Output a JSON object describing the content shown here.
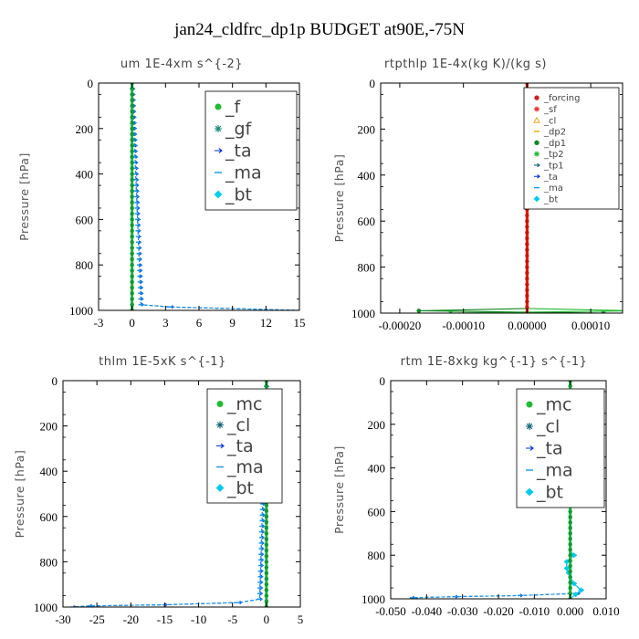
{
  "figure": {
    "title": "jan24_cldfrc_dp1p  BUDGET at90E,-75N"
  },
  "chart_data": [
    {
      "type": "line",
      "title": "um  1E-4xm s^{-2}",
      "xlabel": "",
      "ylabel": "Pressure [hPa]",
      "xlim": [
        -3,
        15
      ],
      "ylim": [
        1000,
        0
      ],
      "xticks": [
        -3,
        0,
        3,
        6,
        9,
        12,
        15
      ],
      "xtick_labels": [
        "-3",
        "0",
        "3",
        "6",
        "9",
        "12",
        "15"
      ],
      "yticks": [
        0,
        200,
        400,
        600,
        800,
        1000
      ],
      "ytick_labels": [
        "0",
        "200",
        "400",
        "600",
        "800",
        "1000"
      ],
      "legend_position": "top-right",
      "legend_size": "large",
      "series": [
        {
          "name": "_f",
          "color": "#22bb33",
          "marker": "circle",
          "pressure": [
            0,
            1000
          ],
          "values": [
            0,
            0
          ]
        },
        {
          "name": "_gf",
          "color": "#118877",
          "marker": "star",
          "pressure": [
            0,
            1000
          ],
          "values": [
            0,
            0
          ]
        },
        {
          "name": "_ta",
          "color": "#0033dd",
          "marker": "arrow",
          "pressure": [
            0,
            975,
            985,
            1000
          ],
          "values": [
            0,
            0.8,
            3.5,
            15
          ]
        },
        {
          "name": "_ma",
          "color": "#1199ee",
          "marker": "dash",
          "pressure": [
            0,
            975,
            985,
            1000
          ],
          "values": [
            0,
            0.8,
            3.3,
            15
          ]
        },
        {
          "name": "_bt",
          "color": "#00ccee",
          "marker": "diamond",
          "pressure": [
            0,
            1000
          ],
          "values": [
            0,
            0
          ]
        }
      ]
    },
    {
      "type": "line",
      "title": "rtpthlp  1E-4x(kg K)/(kg s)",
      "xlabel": "",
      "ylabel": "Pressure [hPa]",
      "xlim": [
        -0.00023,
        0.00015
      ],
      "ylim": [
        1000,
        0
      ],
      "xticks": [
        -0.0002,
        -0.0001,
        0,
        0.0001
      ],
      "xtick_labels": [
        "-0.00020",
        "-0.00010",
        "0.00000",
        "0.00010"
      ],
      "yticks": [
        0,
        200,
        400,
        600,
        800,
        1000
      ],
      "ytick_labels": [
        "0",
        "200",
        "400",
        "600",
        "800",
        "1000"
      ],
      "legend_position": "top-right",
      "legend_size": "small",
      "series": [
        {
          "name": "_forcing",
          "color": "#cc2222",
          "marker": "circle",
          "pressure": [
            0,
            1000
          ],
          "values": [
            0,
            0
          ]
        },
        {
          "name": "_sf",
          "color": "#ee3333",
          "marker": "star",
          "pressure": [
            0,
            1000
          ],
          "values": [
            0,
            0
          ]
        },
        {
          "name": "_cl",
          "color": "#ee9900",
          "marker": "triangle",
          "pressure": [
            0,
            1000
          ],
          "values": [
            0,
            0
          ]
        },
        {
          "name": "_dp2",
          "color": "#ddaa00",
          "marker": "dash",
          "pressure": [
            0,
            990,
            1000
          ],
          "values": [
            0,
            0,
            0
          ]
        },
        {
          "name": "_dp1",
          "color": "#118822",
          "marker": "circle",
          "pressure": [
            0,
            980,
            990,
            1000
          ],
          "values": [
            0,
            0,
            -0.00017,
            0.00012
          ]
        },
        {
          "name": "_tp2",
          "color": "#22bb33",
          "marker": "star",
          "pressure": [
            0,
            980,
            990,
            1000
          ],
          "values": [
            0,
            0,
            0.00017,
            -0.00012
          ]
        },
        {
          "name": "_tp1",
          "color": "#116677",
          "marker": "arrow",
          "pressure": [
            0,
            1000
          ],
          "values": [
            0,
            0
          ]
        },
        {
          "name": "_ta",
          "color": "#0033dd",
          "marker": "arrow",
          "pressure": [
            0,
            1000
          ],
          "values": [
            0,
            0
          ]
        },
        {
          "name": "_ma",
          "color": "#1199ee",
          "marker": "dash",
          "pressure": [
            0,
            1000
          ],
          "values": [
            0,
            0
          ]
        },
        {
          "name": "_bt",
          "color": "#00ccee",
          "marker": "diamond",
          "pressure": [
            0,
            1000
          ],
          "values": [
            0,
            0
          ]
        }
      ]
    },
    {
      "type": "line",
      "title": "thlm  1E-5xK s^{-1}",
      "xlabel": "",
      "ylabel": "Pressure [hPa]",
      "xlim": [
        -30,
        5
      ],
      "ylim": [
        1000,
        0
      ],
      "xticks": [
        -30,
        -25,
        -20,
        -15,
        -10,
        -5,
        0,
        5
      ],
      "xtick_labels": [
        "-30",
        "-25",
        "-20",
        "-15",
        "-10",
        "-5",
        "0",
        "5"
      ],
      "yticks": [
        0,
        200,
        400,
        600,
        800,
        1000
      ],
      "ytick_labels": [
        "0",
        "200",
        "400",
        "600",
        "800",
        "1000"
      ],
      "legend_position": "top-right",
      "legend_size": "large",
      "series": [
        {
          "name": "_mc",
          "color": "#22bb33",
          "marker": "circle",
          "pressure": [
            0,
            1000
          ],
          "values": [
            0,
            0
          ]
        },
        {
          "name": "_cl",
          "color": "#116677",
          "marker": "star",
          "pressure": [
            0,
            1000
          ],
          "values": [
            0,
            0
          ]
        },
        {
          "name": "_ta",
          "color": "#0033dd",
          "marker": "arrow",
          "pressure": [
            0,
            965,
            980,
            990,
            995,
            1000
          ],
          "values": [
            0,
            -1,
            -4,
            -15,
            -26,
            -28.5
          ]
        },
        {
          "name": "_ma",
          "color": "#1199ee",
          "marker": "dash",
          "pressure": [
            0,
            965,
            980,
            990,
            995,
            1000
          ],
          "values": [
            0,
            -1,
            -4,
            -15,
            -26,
            -28.5
          ]
        },
        {
          "name": "_bt",
          "color": "#00ccee",
          "marker": "diamond",
          "pressure": [
            0,
            1000
          ],
          "values": [
            0,
            0
          ]
        }
      ]
    },
    {
      "type": "line",
      "title": "rtm  1E-8xkg kg^{-1} s^{-1}",
      "xlabel": "",
      "ylabel": "Pressure [hPa]",
      "xlim": [
        -0.05,
        0.01
      ],
      "ylim": [
        1000,
        0
      ],
      "xticks": [
        -0.05,
        -0.04,
        -0.03,
        -0.02,
        -0.01,
        0,
        0.01
      ],
      "xtick_labels": [
        "-0.050",
        "-0.040",
        "-0.030",
        "-0.020",
        "-0.010",
        "0.000",
        "0.010"
      ],
      "yticks": [
        0,
        200,
        400,
        600,
        800,
        1000
      ],
      "ytick_labels": [
        "0",
        "200",
        "400",
        "600",
        "800",
        "1000"
      ],
      "legend_position": "top-right",
      "legend_size": "large",
      "series": [
        {
          "name": "_mc",
          "color": "#22bb33",
          "marker": "circle",
          "pressure": [
            0,
            1000
          ],
          "values": [
            0,
            0
          ]
        },
        {
          "name": "_cl",
          "color": "#116677",
          "marker": "star",
          "pressure": [
            0,
            1000
          ],
          "values": [
            0,
            0
          ]
        },
        {
          "name": "_ta",
          "color": "#0033dd",
          "marker": "arrow",
          "pressure": [
            0,
            780,
            800,
            830,
            860,
            900,
            930,
            960,
            975,
            985,
            990,
            995,
            1000
          ],
          "values": [
            0,
            0,
            0.001,
            -0.001,
            -0.001,
            0,
            0.001,
            0.003,
            0.002,
            -0.014,
            -0.032,
            -0.044,
            -0.043
          ]
        },
        {
          "name": "_ma",
          "color": "#1199ee",
          "marker": "dash",
          "pressure": [
            0,
            780,
            800,
            830,
            860,
            900,
            930,
            960,
            975,
            985,
            990,
            995,
            1000
          ],
          "values": [
            0,
            0,
            0.001,
            -0.001,
            -0.001,
            0,
            0.001,
            0.003,
            0.002,
            -0.014,
            -0.032,
            -0.044,
            -0.043
          ]
        },
        {
          "name": "_bt",
          "color": "#00ccee",
          "marker": "diamond",
          "pressure": [
            0,
            780,
            800,
            830,
            860,
            900,
            930,
            960,
            1000
          ],
          "values": [
            0,
            0,
            0.001,
            -0.001,
            -0.001,
            0,
            0.001,
            0.003,
            0
          ]
        }
      ]
    }
  ]
}
